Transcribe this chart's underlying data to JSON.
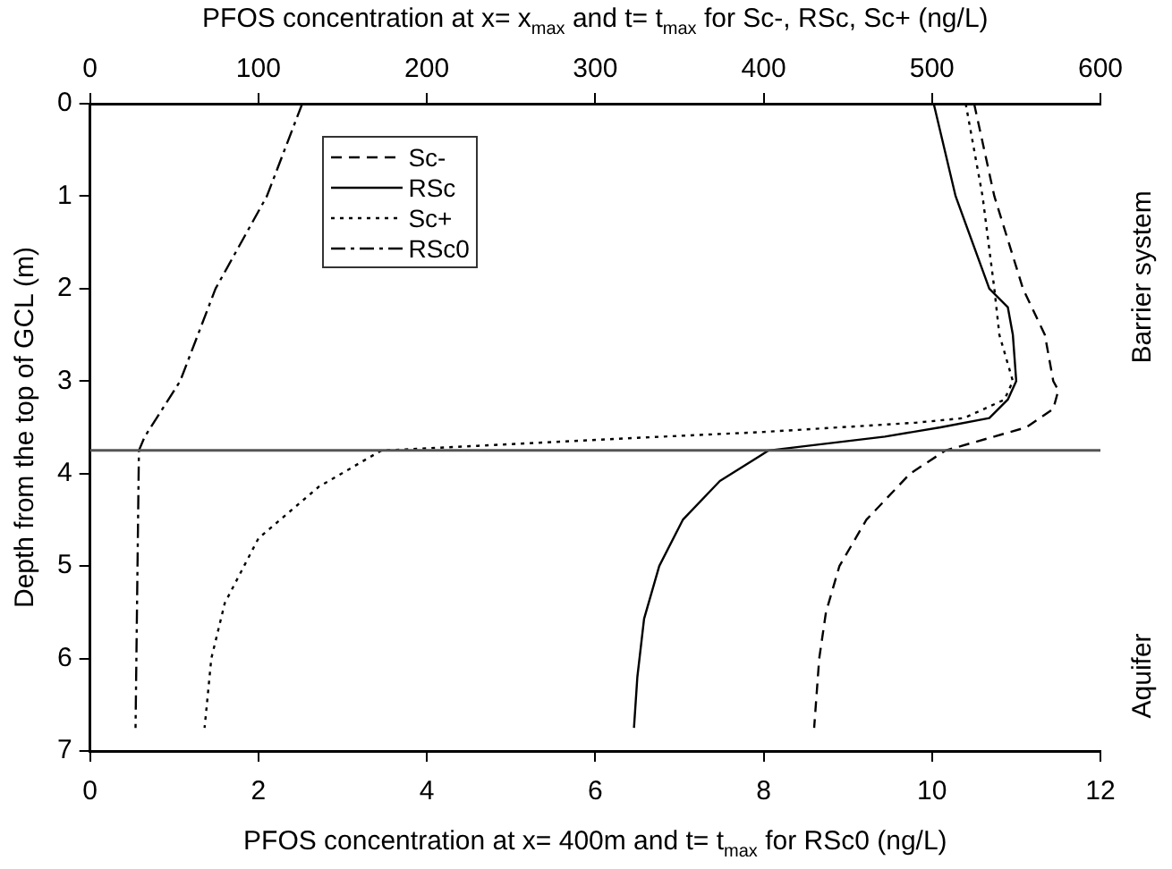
{
  "chart_data": {
    "type": "line",
    "x2label": "PFOS concentration at x= x$_{max}$ and t= t$_{max}$ for Sc-, RSc, Sc+ (ng/L)",
    "xlabel": "PFOS concentration at x= 400m and t= t$_{max}$ for RSc0 (ng/L)",
    "ylabel": "Depth from the top of GCL (m)",
    "xlim": [
      0,
      12
    ],
    "xticks": [
      0,
      2,
      4,
      6,
      8,
      10,
      12
    ],
    "x2lim": [
      0,
      600
    ],
    "x2ticks": [
      0,
      100,
      200,
      300,
      400,
      500,
      600
    ],
    "ylim": [
      7,
      0
    ],
    "yticks": [
      0,
      1,
      2,
      3,
      4,
      5,
      6,
      7
    ],
    "series": [
      {
        "name": "Sc-",
        "color": "#000000",
        "line_style": "dashed",
        "axis": "x2",
        "x": [
          525,
          537,
          554,
          567,
          572,
          575,
          572,
          556,
          508,
          487,
          461,
          445,
          437,
          433,
          430
        ],
        "values": [
          0,
          1,
          2,
          2.5,
          3,
          3.1,
          3.3,
          3.5,
          3.75,
          4,
          4.5,
          5,
          5.5,
          6,
          6.75
        ]
      },
      {
        "name": "RSc",
        "color": "#000000",
        "line_style": "solid",
        "axis": "x2",
        "x": [
          501,
          514,
          530,
          534,
          545,
          548,
          550,
          545,
          534,
          505,
          472,
          403,
          374,
          352,
          338,
          329,
          325,
          323
        ],
        "values": [
          0,
          1,
          1.8,
          2,
          2.2,
          2.5,
          3,
          3.2,
          3.4,
          3.5,
          3.6,
          3.75,
          4.08,
          4.5,
          5,
          5.57,
          6.2,
          6.75
        ]
      },
      {
        "name": "Sc+",
        "color": "#000000",
        "line_style": "dotted",
        "axis": "x2",
        "x": [
          520,
          530,
          537,
          540,
          548,
          543,
          519,
          490,
          400,
          317,
          230,
          173,
          136,
          100,
          80,
          72,
          68
        ],
        "values": [
          0,
          1,
          2,
          2.5,
          3,
          3.2,
          3.4,
          3.45,
          3.55,
          3.62,
          3.7,
          3.75,
          4.14,
          4.7,
          5.4,
          6,
          6.75
        ]
      },
      {
        "name": "RSc0",
        "color": "#000000",
        "line_style": "dashdot",
        "x": [
          2.52,
          2.1,
          1.49,
          1.07,
          0.65,
          0.58,
          0.54
        ],
        "values": [
          0,
          1,
          2,
          3,
          3.6,
          3.75,
          6.75
        ]
      }
    ],
    "ref_lines": [
      {
        "axis": "y",
        "value": 3.75,
        "color": "#555555"
      }
    ],
    "annotations": [
      "Barrier system",
      "Aquifer"
    ],
    "legend": "top left",
    "marker": "none",
    "grid": false
  }
}
